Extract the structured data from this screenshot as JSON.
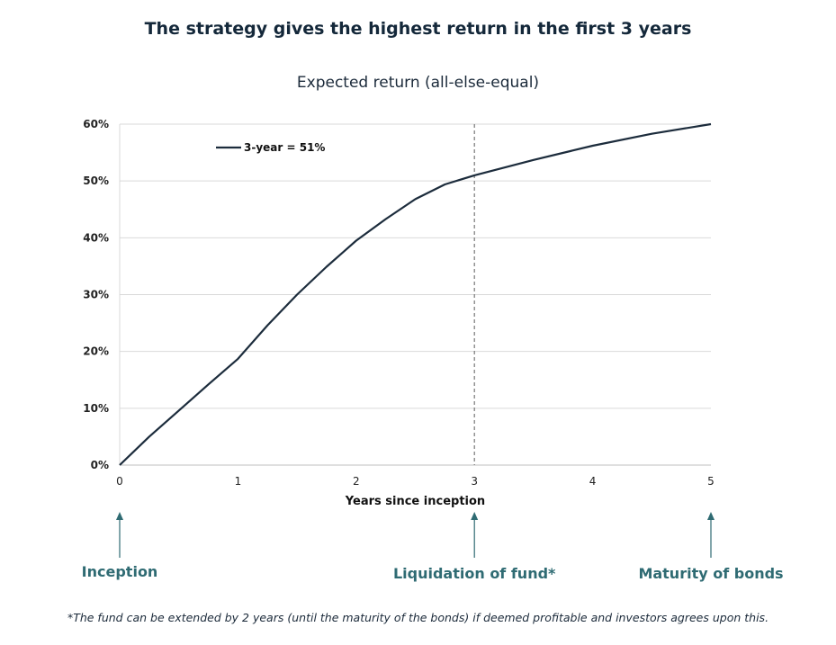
{
  "colors": {
    "line": "#1c2c3c",
    "grid": "#d9d9d9",
    "annotation": "#2f6b73",
    "divider": "#777777"
  },
  "chart_data": {
    "type": "line",
    "title": "The strategy gives the highest return in the first 3 years",
    "subtitle": "Expected return (all-else-equal)",
    "xlabel": "Years since inception",
    "ylabel": "",
    "xlim": [
      0,
      5
    ],
    "ylim": [
      0,
      60
    ],
    "xticks": [
      "0",
      "1",
      "2",
      "3",
      "4",
      "5"
    ],
    "yticks": [
      "0%",
      "10%",
      "20%",
      "30%",
      "40%",
      "50%",
      "60%"
    ],
    "grid": "horizontal",
    "legend": {
      "placement": "top-left",
      "entries": [
        "3-year = 51%"
      ]
    },
    "series": [
      {
        "name": "3-year = 51%",
        "x": [
          0,
          0.25,
          0.5,
          0.75,
          1,
          1.25,
          1.5,
          1.75,
          2,
          2.25,
          2.5,
          2.75,
          3,
          3.5,
          4,
          4.5,
          5
        ],
        "y": [
          0,
          5,
          9.6,
          14.2,
          18.7,
          24.6,
          30,
          34.9,
          39.5,
          43.3,
          46.8,
          49.4,
          51,
          53.7,
          56.2,
          58.3,
          60
        ]
      }
    ],
    "reference_lines": [
      {
        "axis": "x",
        "value": 3,
        "style": "dashed"
      }
    ],
    "annotations": [
      {
        "label": "Inception",
        "x": 0
      },
      {
        "label": "Liquidation of fund*",
        "x": 3
      },
      {
        "label": "Maturity of bonds",
        "x": 5
      }
    ]
  },
  "footnote": "*The fund can be extended by 2 years (until the maturity of the bonds) if deemed profitable and investors agrees upon this."
}
